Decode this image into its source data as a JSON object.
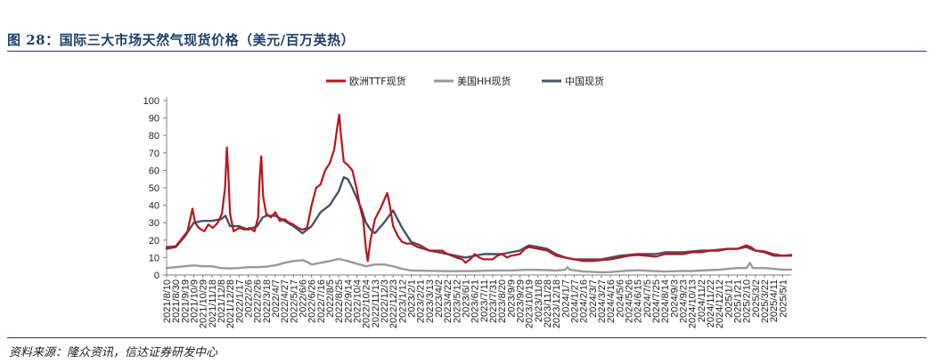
{
  "figure": {
    "title": "图 28：国际三大市场天然气现货价格（美元/百万英热）",
    "source": "资料来源：隆众资讯，信达证券研发中心"
  },
  "chart_data": {
    "type": "line",
    "title": "",
    "xlabel": "",
    "ylabel": "",
    "ylim": [
      0,
      100
    ],
    "yticks": [
      0,
      10,
      20,
      30,
      40,
      50,
      60,
      70,
      80,
      90,
      100
    ],
    "grid": false,
    "legend_position": "top-center",
    "x_tick_labels": [
      "2021/8/10",
      "2021/8/30",
      "2021/9/19",
      "2021/10/9",
      "2021/10/29",
      "2021/11/18",
      "2021/12/8",
      "2021/12/28",
      "2022/1/17",
      "2022/2/6",
      "2022/2/26",
      "2022/3/18",
      "2022/4/7",
      "2022/4/27",
      "2022/5/17",
      "2022/6/6",
      "2022/6/26",
      "2022/7/16",
      "2022/8/5",
      "2022/8/25",
      "2022/9/14",
      "2022/10/4",
      "2022/10/24",
      "2022/11/13",
      "2022/12/3",
      "2022/12/23",
      "2023/1/12",
      "2023/2/1",
      "2023/2/21",
      "2023/3/13",
      "2023/4/2",
      "2023/4/22",
      "2023/5/12",
      "2023/6/1",
      "2023/6/21",
      "2023/7/11",
      "2023/7/31",
      "2023/8/20",
      "2023/9/9",
      "2023/9/29",
      "2023/10/19",
      "2023/11/8",
      "2023/11/28",
      "2023/12/18",
      "2024/1/7",
      "2024/1/27",
      "2024/2/16",
      "2024/3/7",
      "2024/3/27",
      "2024/4/16",
      "2024/5/6",
      "2024/5/26",
      "2024/6/15",
      "2024/7/5",
      "2024/7/25",
      "2024/8/14",
      "2024/9/3",
      "2024/9/23",
      "2024/10/13",
      "2024/11/2",
      "2024/11/22",
      "2024/12/12",
      "2025/1/1",
      "2025/1/21",
      "2025/2/10",
      "2025/3/2",
      "2025/3/22",
      "2025/4/11",
      "2025/5/1"
    ],
    "x_start": "2021/8/10",
    "x_end": "2025/5/20",
    "series": [
      {
        "name": "欧洲TTF现货",
        "color": "#c0121c",
        "points": [
          [
            "2021/8/10",
            16
          ],
          [
            "2021/8/30",
            16.5
          ],
          [
            "2021/9/10",
            20
          ],
          [
            "2021/9/25",
            25
          ],
          [
            "2021/10/6",
            38
          ],
          [
            "2021/10/12",
            30
          ],
          [
            "2021/10/20",
            27
          ],
          [
            "2021/11/1",
            25
          ],
          [
            "2021/11/10",
            29
          ],
          [
            "2021/11/20",
            27
          ],
          [
            "2021/12/1",
            30
          ],
          [
            "2021/12/10",
            35
          ],
          [
            "2021/12/17",
            50
          ],
          [
            "2021/12/21",
            73
          ],
          [
            "2021/12/24",
            60
          ],
          [
            "2021/12/28",
            35
          ],
          [
            "2022/1/5",
            25
          ],
          [
            "2022/1/17",
            27
          ],
          [
            "2022/1/30",
            26
          ],
          [
            "2022/2/10",
            27
          ],
          [
            "2022/2/20",
            25
          ],
          [
            "2022/2/28",
            33
          ],
          [
            "2022/3/3",
            54
          ],
          [
            "2022/3/7",
            68
          ],
          [
            "2022/3/11",
            45
          ],
          [
            "2022/3/18",
            35
          ],
          [
            "2022/3/28",
            33
          ],
          [
            "2022/4/7",
            36
          ],
          [
            "2022/4/17",
            31
          ],
          [
            "2022/4/27",
            32
          ],
          [
            "2022/5/7",
            30
          ],
          [
            "2022/5/17",
            29
          ],
          [
            "2022/5/27",
            27
          ],
          [
            "2022/6/6",
            26
          ],
          [
            "2022/6/16",
            27
          ],
          [
            "2022/6/26",
            40
          ],
          [
            "2022/7/6",
            50
          ],
          [
            "2022/7/16",
            52
          ],
          [
            "2022/7/26",
            60
          ],
          [
            "2022/8/5",
            64
          ],
          [
            "2022/8/15",
            72
          ],
          [
            "2022/8/22",
            85
          ],
          [
            "2022/8/26",
            92
          ],
          [
            "2022/8/30",
            80
          ],
          [
            "2022/9/5",
            65
          ],
          [
            "2022/9/14",
            63
          ],
          [
            "2022/9/24",
            60
          ],
          [
            "2022/10/4",
            49
          ],
          [
            "2022/10/10",
            40
          ],
          [
            "2022/10/18",
            32
          ],
          [
            "2022/10/24",
            15
          ],
          [
            "2022/10/28",
            8
          ],
          [
            "2022/11/3",
            20
          ],
          [
            "2022/11/13",
            32
          ],
          [
            "2022/11/25",
            38
          ],
          [
            "2022/12/5",
            44
          ],
          [
            "2022/12/10",
            47
          ],
          [
            "2022/12/15",
            41
          ],
          [
            "2022/12/23",
            28
          ],
          [
            "2023/1/3",
            22
          ],
          [
            "2023/1/12",
            19
          ],
          [
            "2023/1/22",
            18
          ],
          [
            "2023/2/1",
            18
          ],
          [
            "2023/2/15",
            16
          ],
          [
            "2023/3/1",
            15
          ],
          [
            "2023/3/13",
            14
          ],
          [
            "2023/3/27",
            14
          ],
          [
            "2023/4/10",
            14
          ],
          [
            "2023/4/22",
            12
          ],
          [
            "2023/5/12",
            10
          ],
          [
            "2023/5/25",
            9
          ],
          [
            "2023/6/1",
            7
          ],
          [
            "2023/6/15",
            10
          ],
          [
            "2023/6/21",
            12
          ],
          [
            "2023/7/1",
            10
          ],
          [
            "2023/7/11",
            9
          ],
          [
            "2023/7/31",
            9
          ],
          [
            "2023/8/10",
            11
          ],
          [
            "2023/8/20",
            12
          ],
          [
            "2023/9/1",
            10
          ],
          [
            "2023/9/9",
            11
          ],
          [
            "2023/9/29",
            12
          ],
          [
            "2023/10/10",
            15
          ],
          [
            "2023/10/19",
            16
          ],
          [
            "2023/11/8",
            15
          ],
          [
            "2023/11/28",
            14
          ],
          [
            "2023/12/18",
            11
          ],
          [
            "2024/1/7",
            10
          ],
          [
            "2024/1/27",
            9
          ],
          [
            "2024/2/16",
            8
          ],
          [
            "2024/3/7",
            8
          ],
          [
            "2024/3/27",
            8.5
          ],
          [
            "2024/4/16",
            9
          ],
          [
            "2024/5/6",
            10
          ],
          [
            "2024/5/26",
            11
          ],
          [
            "2024/6/15",
            11.5
          ],
          [
            "2024/7/5",
            11
          ],
          [
            "2024/7/25",
            10.5
          ],
          [
            "2024/8/14",
            12
          ],
          [
            "2024/9/3",
            12
          ],
          [
            "2024/9/23",
            12
          ],
          [
            "2024/10/13",
            13
          ],
          [
            "2024/11/2",
            13
          ],
          [
            "2024/11/22",
            14
          ],
          [
            "2024/12/12",
            14
          ],
          [
            "2025/1/1",
            15
          ],
          [
            "2025/1/21",
            15
          ],
          [
            "2025/2/10",
            17
          ],
          [
            "2025/2/20",
            16
          ],
          [
            "2025/3/2",
            14
          ],
          [
            "2025/3/22",
            13
          ],
          [
            "2025/4/11",
            11
          ],
          [
            "2025/5/1",
            11
          ],
          [
            "2025/5/20",
            11
          ]
        ]
      },
      {
        "name": "美国HH现货",
        "color": "#9a9a9a",
        "points": [
          [
            "2021/8/10",
            4
          ],
          [
            "2021/9/19",
            5
          ],
          [
            "2021/10/9",
            5.5
          ],
          [
            "2021/10/29",
            5
          ],
          [
            "2021/11/18",
            5
          ],
          [
            "2021/12/8",
            4
          ],
          [
            "2021/12/28",
            3.8
          ],
          [
            "2022/1/17",
            4
          ],
          [
            "2022/2/6",
            4.5
          ],
          [
            "2022/2/26",
            4.5
          ],
          [
            "2022/3/18",
            4.8
          ],
          [
            "2022/4/7",
            5.5
          ],
          [
            "2022/4/27",
            7
          ],
          [
            "2022/5/17",
            8
          ],
          [
            "2022/6/6",
            8.5
          ],
          [
            "2022/6/16",
            7.5
          ],
          [
            "2022/6/26",
            6
          ],
          [
            "2022/7/16",
            7
          ],
          [
            "2022/8/5",
            8
          ],
          [
            "2022/8/25",
            9.2
          ],
          [
            "2022/9/14",
            8
          ],
          [
            "2022/10/4",
            6.5
          ],
          [
            "2022/10/24",
            5
          ],
          [
            "2022/11/13",
            6
          ],
          [
            "2022/12/3",
            6
          ],
          [
            "2022/12/23",
            5
          ],
          [
            "2023/1/12",
            3.5
          ],
          [
            "2023/2/1",
            2.6
          ],
          [
            "2023/3/13",
            2.4
          ],
          [
            "2023/4/22",
            2.2
          ],
          [
            "2023/5/12",
            2.2
          ],
          [
            "2023/6/21",
            2.3
          ],
          [
            "2023/7/31",
            2.6
          ],
          [
            "2023/9/9",
            2.6
          ],
          [
            "2023/10/19",
            3
          ],
          [
            "2023/11/28",
            2.8
          ],
          [
            "2023/12/18",
            2.5
          ],
          [
            "2024/1/7",
            3
          ],
          [
            "2024/1/12",
            4.5
          ],
          [
            "2024/1/17",
            3
          ],
          [
            "2024/2/16",
            2
          ],
          [
            "2024/3/27",
            1.6
          ],
          [
            "2024/4/16",
            1.7
          ],
          [
            "2024/5/26",
            2.5
          ],
          [
            "2024/6/15",
            2.7
          ],
          [
            "2024/7/25",
            2.2
          ],
          [
            "2024/8/14",
            2
          ],
          [
            "2024/9/23",
            2.3
          ],
          [
            "2024/10/13",
            2.3
          ],
          [
            "2024/11/22",
            2.8
          ],
          [
            "2024/12/12",
            3
          ],
          [
            "2025/1/1",
            3.5
          ],
          [
            "2025/1/21",
            4
          ],
          [
            "2025/2/10",
            4
          ],
          [
            "2025/2/18",
            7
          ],
          [
            "2025/2/24",
            4
          ],
          [
            "2025/3/22",
            4
          ],
          [
            "2025/4/11",
            3.5
          ],
          [
            "2025/5/1",
            3
          ],
          [
            "2025/5/20",
            3.1
          ]
        ]
      },
      {
        "name": "中国现货",
        "color": "#44546a",
        "points": [
          [
            "2021/8/10",
            15
          ],
          [
            "2021/8/30",
            16
          ],
          [
            "2021/9/19",
            22
          ],
          [
            "2021/10/9",
            30
          ],
          [
            "2021/10/29",
            31
          ],
          [
            "2021/11/18",
            31
          ],
          [
            "2021/12/8",
            32
          ],
          [
            "2021/12/18",
            34
          ],
          [
            "2021/12/28",
            28
          ],
          [
            "2022/1/17",
            28
          ],
          [
            "2022/2/6",
            26
          ],
          [
            "2022/2/26",
            28
          ],
          [
            "2022/3/10",
            33
          ],
          [
            "2022/3/18",
            34
          ],
          [
            "2022/4/7",
            34
          ],
          [
            "2022/4/27",
            31
          ],
          [
            "2022/5/17",
            28
          ],
          [
            "2022/6/6",
            24
          ],
          [
            "2022/6/26",
            28
          ],
          [
            "2022/7/16",
            36
          ],
          [
            "2022/8/5",
            40
          ],
          [
            "2022/8/25",
            48
          ],
          [
            "2022/9/5",
            56
          ],
          [
            "2022/9/14",
            55
          ],
          [
            "2022/9/24",
            50
          ],
          [
            "2022/10/4",
            44
          ],
          [
            "2022/10/14",
            38
          ],
          [
            "2022/10/24",
            30
          ],
          [
            "2022/11/3",
            26
          ],
          [
            "2022/11/13",
            24
          ],
          [
            "2022/12/3",
            30
          ],
          [
            "2022/12/23",
            37
          ],
          [
            "2023/1/12",
            27
          ],
          [
            "2023/2/1",
            19
          ],
          [
            "2023/2/21",
            17
          ],
          [
            "2023/3/13",
            14
          ],
          [
            "2023/4/2",
            13
          ],
          [
            "2023/4/22",
            12
          ],
          [
            "2023/5/12",
            11
          ],
          [
            "2023/6/1",
            10
          ],
          [
            "2023/6/21",
            11
          ],
          [
            "2023/7/11",
            12
          ],
          [
            "2023/7/31",
            12
          ],
          [
            "2023/8/20",
            12
          ],
          [
            "2023/9/9",
            13
          ],
          [
            "2023/9/29",
            14
          ],
          [
            "2023/10/19",
            17
          ],
          [
            "2023/11/8",
            16
          ],
          [
            "2023/11/28",
            15
          ],
          [
            "2023/12/18",
            12
          ],
          [
            "2024/1/7",
            10
          ],
          [
            "2024/1/27",
            9
          ],
          [
            "2024/2/16",
            9
          ],
          [
            "2024/3/7",
            9
          ],
          [
            "2024/3/27",
            9
          ],
          [
            "2024/4/16",
            10
          ],
          [
            "2024/5/6",
            11
          ],
          [
            "2024/5/26",
            11.5
          ],
          [
            "2024/6/15",
            12
          ],
          [
            "2024/7/5",
            12
          ],
          [
            "2024/7/25",
            12
          ],
          [
            "2024/8/14",
            13
          ],
          [
            "2024/9/3",
            13
          ],
          [
            "2024/9/23",
            13
          ],
          [
            "2024/10/13",
            13.5
          ],
          [
            "2024/11/2",
            14
          ],
          [
            "2024/11/22",
            14
          ],
          [
            "2024/12/12",
            14.5
          ],
          [
            "2025/1/1",
            15
          ],
          [
            "2025/1/21",
            15
          ],
          [
            "2025/2/10",
            16
          ],
          [
            "2025/3/2",
            14
          ],
          [
            "2025/3/22",
            13.5
          ],
          [
            "2025/4/11",
            12
          ],
          [
            "2025/5/1",
            11
          ],
          [
            "2025/5/20",
            11.5
          ]
        ]
      }
    ]
  }
}
